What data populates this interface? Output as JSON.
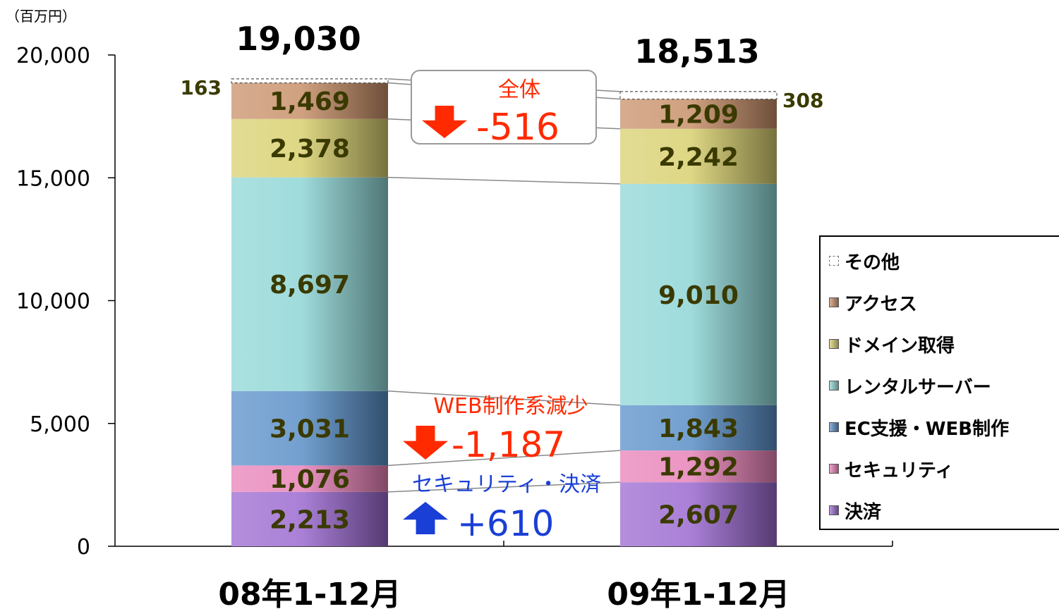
{
  "chart_data": {
    "type": "bar",
    "stacked": true,
    "unit_label": "（百万円）",
    "categories": [
      "08年1-12月",
      "09年1-12月"
    ],
    "totals": [
      "19,030",
      "18,513"
    ],
    "ylim": [
      0,
      20000
    ],
    "yticks": [
      0,
      5000,
      10000,
      15000,
      20000
    ],
    "ytick_labels": [
      "0",
      "5,000",
      "10,000",
      "15,000",
      "20,000"
    ],
    "series": [
      {
        "name": "決済",
        "values": [
          2213,
          2607
        ],
        "labels": [
          "2,213",
          "2,607"
        ],
        "color": "#9b6ad0"
      },
      {
        "name": "セキュリティ",
        "values": [
          1076,
          1292
        ],
        "labels": [
          "1,076",
          "1,292"
        ],
        "color": "#e882b8"
      },
      {
        "name": "EC支援・WEB制作",
        "values": [
          3031,
          1843
        ],
        "labels": [
          "3,031",
          "1,843"
        ],
        "color": "#5a8fc8"
      },
      {
        "name": "レンタルサーバー",
        "values": [
          8697,
          9010
        ],
        "labels": [
          "8,697",
          "9,010"
        ],
        "color": "#8fd6d6"
      },
      {
        "name": "ドメイン取得",
        "values": [
          2378,
          2242
        ],
        "labels": [
          "2,378",
          "2,242"
        ],
        "color": "#d8d070"
      },
      {
        "name": "アクセス",
        "values": [
          1469,
          1209
        ],
        "labels": [
          "1,469",
          "1,209"
        ],
        "color": "#c8906a"
      },
      {
        "name": "その他",
        "values": [
          163,
          308
        ],
        "labels": [
          "163",
          "308"
        ],
        "color": "#ffffff"
      }
    ],
    "annotations": {
      "total": {
        "title": "全体",
        "value": "-516",
        "direction": "down"
      },
      "web": {
        "title": "WEB制作系減少",
        "value": "-1,187",
        "direction": "down"
      },
      "security": {
        "title": "セキュリティ・決済",
        "value": "+610",
        "direction": "up"
      }
    },
    "legend_position": "right",
    "grid": false
  },
  "colors": {
    "down": "#ff2a00",
    "up": "#1a3fd6",
    "label_dark": "#3a3a00"
  }
}
